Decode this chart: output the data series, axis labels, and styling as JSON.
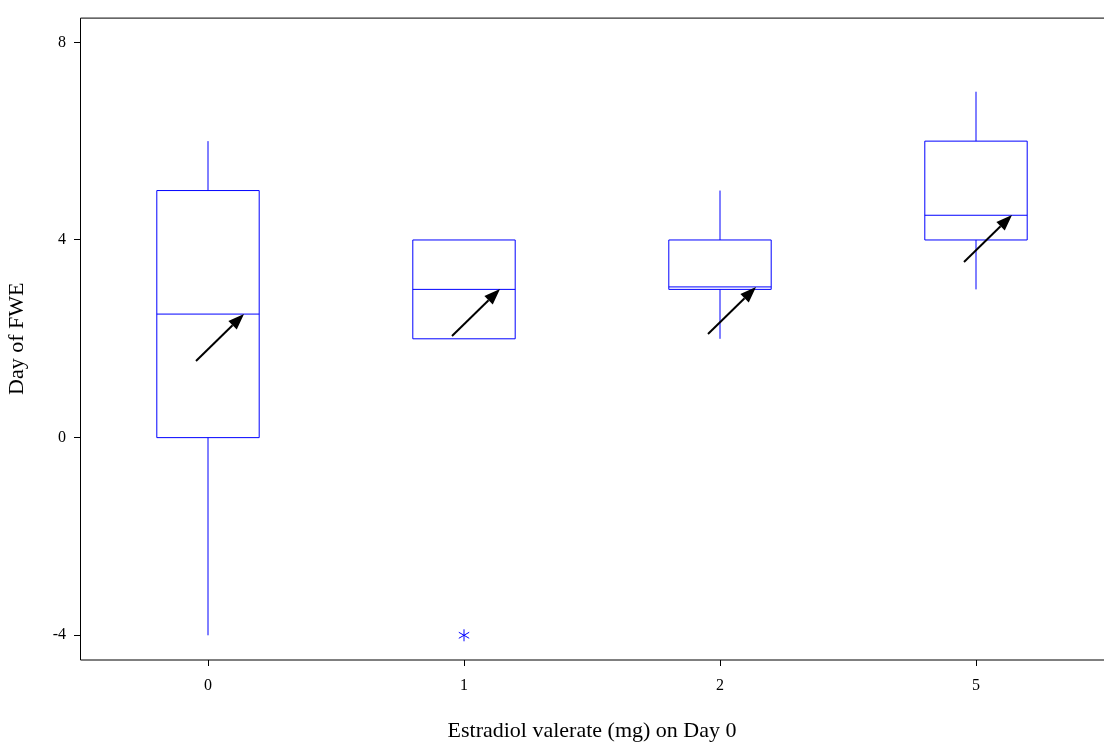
{
  "chart_data": {
    "type": "box",
    "xlabel": "Estradiol valerate (mg) on Day 0",
    "ylabel": "Day of FWE",
    "categories": [
      "0",
      "1",
      "2",
      "5"
    ],
    "boxes": [
      {
        "low": -4,
        "q1": 0,
        "median": 2.5,
        "q3": 5,
        "high": 6
      },
      {
        "low": 2,
        "q1": 2,
        "median": 3,
        "q3": 4,
        "high": 4,
        "outliers": [
          -4
        ]
      },
      {
        "low": 2,
        "q1": 3,
        "median": 3.05,
        "q3": 4,
        "high": 5
      },
      {
        "low": 3,
        "q1": 4,
        "median": 4.5,
        "q3": 6,
        "high": 7
      }
    ],
    "color": "#0000ff",
    "ylim": [
      -4.5,
      8.5
    ],
    "yticks": [
      -4,
      0,
      4,
      8
    ],
    "grid": false,
    "legend": false
  }
}
